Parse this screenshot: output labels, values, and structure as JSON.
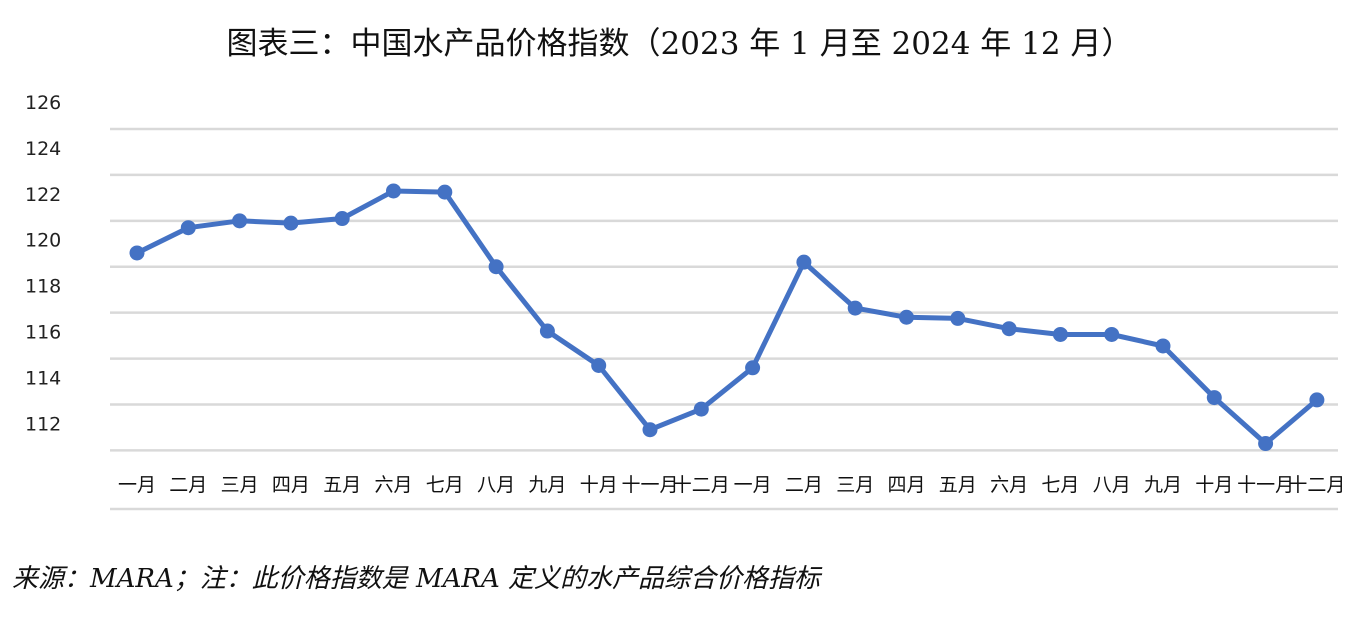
{
  "chart_data": {
    "type": "line",
    "title": "图表三：中国水产品价格指数（2023 年 1 月至 2024 年 12 月）",
    "categories": [
      "一月",
      "二月",
      "三月",
      "四月",
      "五月",
      "六月",
      "七月",
      "八月",
      "九月",
      "十月",
      "十一月",
      "十二月",
      "一月",
      "二月",
      "三月",
      "四月",
      "五月",
      "六月",
      "七月",
      "八月",
      "九月",
      "十月",
      "十一月",
      "十二月"
    ],
    "series": [
      {
        "values": [
          120.6,
          121.7,
          122.0,
          121.9,
          122.1,
          123.3,
          123.25,
          120.0,
          117.2,
          115.7,
          112.9,
          113.8,
          115.6,
          120.2,
          118.2,
          117.8,
          117.75,
          117.3,
          117.05,
          117.05,
          116.55,
          114.3,
          112.3,
          114.2
        ]
      }
    ],
    "yticks": [
      112,
      114,
      116,
      118,
      120,
      122,
      124,
      126
    ],
    "ylim": [
      111.8,
      126
    ],
    "grid": true,
    "legend": "none",
    "line_color": "#4472C4",
    "grid_color": "#D9D9D9"
  },
  "source_note": "来源：MARA；注：此价格指数是 MARA 定义的水产品综合价格指标"
}
